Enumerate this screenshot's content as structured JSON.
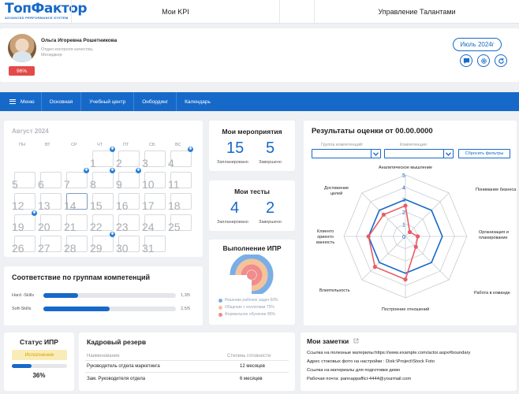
{
  "header": {
    "logo_main": "ТопФактор",
    "logo_sub": "ADVANCED PERFORMANCE SYSTEM",
    "nav_kpi": "Мои KPI",
    "nav_talent": "Управление Талантами"
  },
  "profile": {
    "name": "Ольга Игоревна Рошетникова",
    "department": "Отдел контроля качества,",
    "position": "Менеджер",
    "badge": "96%",
    "month_button": "Июль 2024г",
    "icons": [
      "chat-icon",
      "gear-icon",
      "refresh-icon"
    ]
  },
  "menu": {
    "items": [
      "Меню",
      "Основная",
      "Учебный центр",
      "Онбординг",
      "Календарь"
    ]
  },
  "calendar": {
    "title": "Август 2024",
    "weekdays": [
      "ПН",
      "ВТ",
      "СР",
      "ЧТ",
      "ПТ",
      "СБ",
      "ВС"
    ],
    "weeks": [
      [
        "",
        "",
        "",
        "1",
        "2",
        "3",
        "4"
      ],
      [
        "5",
        "6",
        "7",
        "8",
        "9",
        "10",
        "11"
      ],
      [
        "12",
        "13",
        "14",
        "15",
        "16",
        "17",
        "18"
      ],
      [
        "19",
        "20",
        "21",
        "22",
        "23",
        "24",
        "25"
      ],
      [
        "26",
        "27",
        "28",
        "29",
        "30",
        "31",
        ""
      ]
    ],
    "today": "14",
    "event_days": [
      "1",
      "4",
      "7",
      "8",
      "9",
      "19",
      "29"
    ]
  },
  "events": {
    "title": "Мои мероприятия",
    "planned_value": "15",
    "planned_label": "Запланировано",
    "done_value": "5",
    "done_label": "Завершено"
  },
  "tests": {
    "title": "Мои тесты",
    "planned_value": "4",
    "planned_label": "Запланировано",
    "done_value": "2",
    "done_label": "Завершено"
  },
  "ipr": {
    "title": "Выполнение  ИПР",
    "legend": [
      {
        "label": "Решение рабочих задач 60%",
        "color": "#7aaee6"
      },
      {
        "label": "Общение с коллегами 75%",
        "color": "#f4c39a"
      },
      {
        "label": "Формальное обучение 86%",
        "color": "#f08c8c"
      }
    ]
  },
  "radar": {
    "title": "Результаты оценки от 00.00.0000",
    "filter_group_label": "Группа компетенций:",
    "filter_comp_label": "Компетенция:",
    "reset_label": "Сбросить фильтры",
    "colors": {
      "series_a": "#1769c9",
      "series_b": "#e85c66"
    }
  },
  "chart_data": {
    "type": "radar",
    "categories": [
      "Аналитическое мышление",
      "Понимание бизнеса",
      "Организация и планирование",
      "Работа в команде",
      "Построение отношений",
      "Влиятельность",
      "Клиентоориентированность",
      "Достижение целей"
    ],
    "category_display": [
      [
        "Аналитическое мышление"
      ],
      [
        "Понимание бизнеса"
      ],
      [
        "Организация и",
        "планирование"
      ],
      [
        "Работа в команде"
      ],
      [
        "Построение отношений"
      ],
      [
        "Влиятельность"
      ],
      [
        "Клиенто",
        "ориенто",
        "ванность"
      ],
      [
        "Достижение",
        "целей"
      ]
    ],
    "ticks": [
      "0",
      "1",
      "2",
      "3",
      "4",
      "5"
    ],
    "rmax": 5,
    "series": [
      {
        "values": [
          3,
          3,
          3,
          3,
          3,
          3,
          3,
          3
        ]
      },
      {
        "values": [
          2.5,
          0.5,
          1,
          1.2,
          3.5,
          3.5,
          3,
          2.5
        ]
      }
    ]
  },
  "competence": {
    "title": "Соответствие по группам компетенций",
    "rows": [
      {
        "label": "Hard -Skills",
        "value": "1,3/5",
        "fraction": 0.26
      },
      {
        "label": "Soft-Skills",
        "value": "2,5/5",
        "fraction": 0.5
      }
    ]
  },
  "status": {
    "title": "Статус ИПР",
    "badge": "Исполнение",
    "percent": "36%",
    "fraction": 0.36
  },
  "reserve": {
    "title": "Кадровый резерв",
    "col_name": "Наименование",
    "col_ready": "Степень готовности",
    "rows": [
      {
        "name": "Руководитель отдела маркетинга",
        "ready": "12 месяцев"
      },
      {
        "name": "Зам. Руководителя отдела",
        "ready": "6 месяцев"
      }
    ]
  },
  "notes": {
    "title": "Мои заметки",
    "items": [
      "Ссылка на полезные материлы:https://www.example.com/actor.aspx#boundary",
      "Адрес стоковых фото на настройки : Disk:\\Project\\Stock Foto",
      "Ссылка на материалы для подготовки демо",
      "Рабочая почта: pannappaffici-4444@yourmail.com"
    ]
  }
}
